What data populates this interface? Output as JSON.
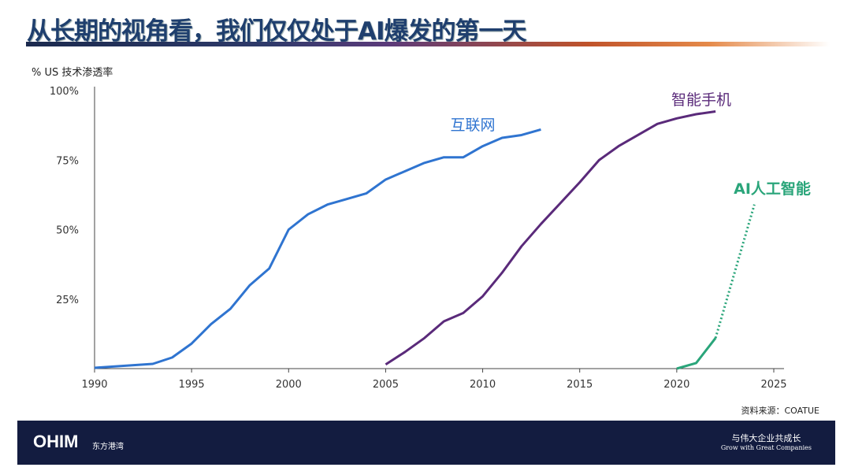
{
  "title": "从长期的视角看，我们仅仅处于AI爆发的第一天",
  "source": "资料来源：COATUE",
  "footer": {
    "logo": "OHIM",
    "logo_cn": "东方港湾",
    "slogan_cn": "与伟大企业共成长",
    "slogan_en": "Grow with Great Companies"
  },
  "chart_data": {
    "type": "line",
    "title": "",
    "ylabel": "% US 技术渗透率",
    "xlabel": "",
    "xlim": [
      1990,
      2025
    ],
    "ylim": [
      0,
      100
    ],
    "xticks": [
      "1990",
      "1995",
      "2000",
      "2005",
      "2010",
      "2015",
      "2020",
      "2025"
    ],
    "yticks": [
      "25%",
      "50%",
      "75%",
      "100%"
    ],
    "grid": false,
    "series": [
      {
        "name": "互联网",
        "color": "#2f74d0",
        "x": [
          1990,
          1993,
          1994,
          1995,
          1996,
          1997,
          1998,
          1999,
          2000,
          2001,
          2002,
          2004,
          2005,
          2007,
          2008,
          2009,
          2010,
          2011,
          2012,
          2013
        ],
        "y": [
          0.3,
          1.7,
          4,
          9,
          16,
          21.5,
          30,
          36,
          50,
          55.5,
          59,
          63,
          68,
          74,
          76,
          76,
          80,
          83,
          84,
          86
        ]
      },
      {
        "name": "智能手机",
        "color": "#5a2a7a",
        "x": [
          2005,
          2006,
          2007,
          2008,
          2009,
          2010,
          2011,
          2012,
          2013,
          2014,
          2015,
          2016,
          2017,
          2018,
          2019,
          2020,
          2021,
          2022
        ],
        "y": [
          1.5,
          6,
          11,
          17,
          20,
          26,
          34.5,
          44,
          52,
          59.5,
          67,
          75,
          80,
          84,
          88,
          90,
          91.5,
          92.5
        ]
      },
      {
        "name": "AI人工智能",
        "color": "#2aa57a",
        "x": [
          2020,
          2021,
          2022
        ],
        "y": [
          0,
          2,
          11
        ],
        "projection": {
          "x": [
            2022,
            2024
          ],
          "y": [
            11,
            59
          ],
          "style": "dotted"
        }
      }
    ]
  }
}
